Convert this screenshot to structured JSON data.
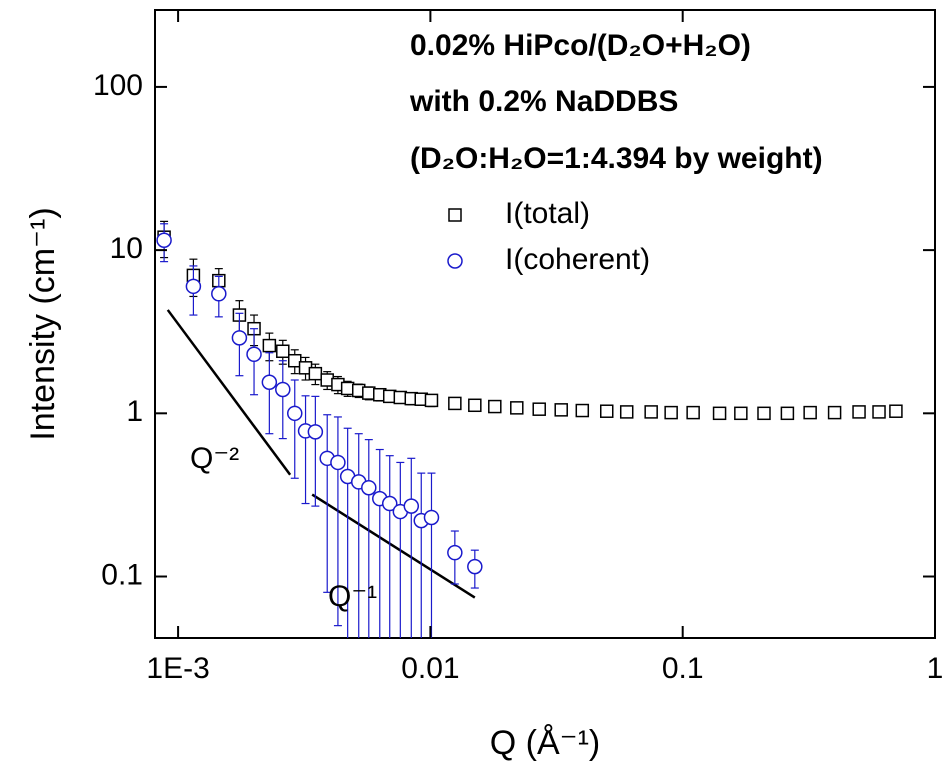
{
  "chart_data": {
    "type": "scatter",
    "annotations": [
      "0.02% HiPco/(D₂O+H₂O)",
      "with 0.2% NaDDBS",
      "(D₂O:H₂O=1:4.394 by weight)"
    ],
    "x_label": "Q (Å⁻¹)",
    "y_label": "Intensity (cm⁻¹)",
    "xlog": true,
    "ylog": true,
    "xlim": [
      0.00081,
      1
    ],
    "ylim": [
      0.042,
      296
    ],
    "xticks": [
      {
        "value": 0.001,
        "label": "1E-3"
      },
      0.01,
      0.1,
      1
    ],
    "yticks": [
      0.1,
      1,
      10,
      100
    ],
    "legend": "top-right",
    "series": [
      {
        "name": "I(total)",
        "marker": "square",
        "color": "#000000",
        "x": [
          0.00088,
          0.00115,
          0.00145,
          0.00175,
          0.002,
          0.0023,
          0.0026,
          0.0029,
          0.0032,
          0.0035,
          0.0039,
          0.0043,
          0.0047,
          0.0052,
          0.0057,
          0.0063,
          0.0069,
          0.0076,
          0.0084,
          0.0092,
          0.0101,
          0.0125,
          0.015,
          0.018,
          0.022,
          0.027,
          0.033,
          0.04,
          0.05,
          0.06,
          0.075,
          0.09,
          0.11,
          0.14,
          0.17,
          0.21,
          0.26,
          0.32,
          0.4,
          0.5,
          0.6,
          0.7
        ],
        "values": [
          12,
          7,
          6.5,
          4,
          3.3,
          2.6,
          2.4,
          2.1,
          1.9,
          1.75,
          1.6,
          1.5,
          1.42,
          1.38,
          1.33,
          1.3,
          1.27,
          1.25,
          1.23,
          1.22,
          1.2,
          1.15,
          1.12,
          1.1,
          1.08,
          1.06,
          1.05,
          1.04,
          1.03,
          1.02,
          1.02,
          1.01,
          1.01,
          1.0,
          1.0,
          1.0,
          1.0,
          1.01,
          1.01,
          1.02,
          1.02,
          1.03
        ],
        "errors": [
          3,
          1.8,
          1.2,
          0.9,
          0.7,
          0.5,
          0.4,
          0.35,
          0.3,
          0.25,
          0.2,
          0.18,
          0.15,
          0.13,
          0.12,
          0.11,
          0.1,
          0.1,
          0.1,
          0.1,
          0.1,
          0.02,
          0.02,
          0.02,
          0.02,
          0.02,
          0.02,
          0.02,
          0.02,
          0.02,
          0.02,
          0.02,
          0.02,
          0.02,
          0.02,
          0.02,
          0.02,
          0.02,
          0.02,
          0.02,
          0.02,
          0.02
        ]
      },
      {
        "name": "I(coherent)",
        "marker": "circle",
        "color": "#1a1acc",
        "x": [
          0.00088,
          0.00115,
          0.00145,
          0.00175,
          0.002,
          0.0023,
          0.0026,
          0.0029,
          0.0032,
          0.0035,
          0.0039,
          0.0043,
          0.0047,
          0.0052,
          0.0057,
          0.0063,
          0.0069,
          0.0076,
          0.0084,
          0.0092,
          0.0101,
          0.0125,
          0.015
        ],
        "values": [
          11.5,
          6,
          5.4,
          2.9,
          2.3,
          1.55,
          1.4,
          1.0,
          0.78,
          0.77,
          0.53,
          0.5,
          0.41,
          0.38,
          0.35,
          0.3,
          0.28,
          0.25,
          0.27,
          0.22,
          0.23,
          0.14,
          0.115
        ],
        "errors": [
          3,
          2,
          1.5,
          1.2,
          1,
          0.8,
          0.7,
          0.6,
          0.5,
          0.5,
          0.45,
          0.45,
          0.4,
          0.37,
          0.34,
          0.3,
          0.27,
          0.25,
          0.26,
          0.21,
          0.2,
          0.05,
          0.03
        ]
      }
    ],
    "guide_lines": [
      {
        "label": "Q⁻²",
        "x": [
          0.00091,
          0.00278
        ],
        "y": [
          4.3,
          0.42
        ]
      },
      {
        "label": "Q⁻¹",
        "x": [
          0.0034,
          0.015
        ],
        "y": [
          0.318,
          0.0743
        ]
      }
    ]
  }
}
